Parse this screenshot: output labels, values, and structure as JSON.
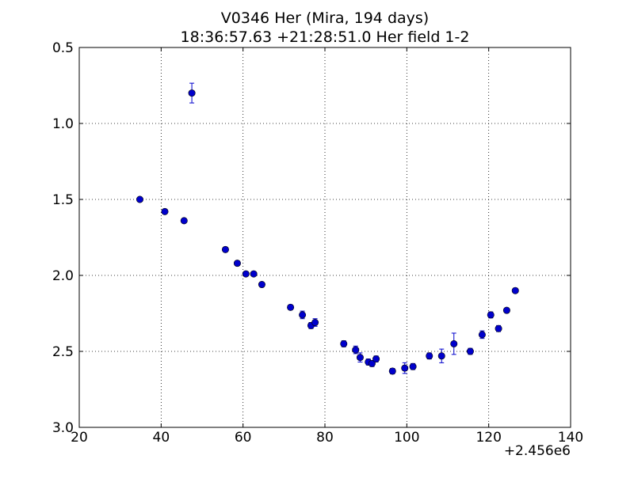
{
  "chart_data": {
    "type": "scatter",
    "title": "V0346 Her (Mira, 194 days)",
    "subtitle": "18:36:57.63 +21:28:51.0 Her field 1-2",
    "xlabel": "",
    "ylabel": "",
    "x_offset_label": "+2.456e6",
    "xlim": [
      20,
      140
    ],
    "ylim": [
      0.5,
      3.0
    ],
    "y_inverted": true,
    "grid": true,
    "grid_style": "dotted",
    "marker_color": "#0000cc",
    "x_ticks": [
      {
        "value": 20,
        "label": "20"
      },
      {
        "value": 40,
        "label": "40"
      },
      {
        "value": 60,
        "label": "60"
      },
      {
        "value": 80,
        "label": "80"
      },
      {
        "value": 100,
        "label": "100"
      },
      {
        "value": 120,
        "label": "120"
      },
      {
        "value": 140,
        "label": "140"
      }
    ],
    "y_ticks": [
      {
        "value": 0.5,
        "label": "0.5"
      },
      {
        "value": 1.0,
        "label": "1.0"
      },
      {
        "value": 1.5,
        "label": "1.5"
      },
      {
        "value": 2.0,
        "label": "2.0"
      },
      {
        "value": 2.5,
        "label": "2.5"
      },
      {
        "value": 3.0,
        "label": "3.0"
      }
    ],
    "points": [
      {
        "x": 34.8,
        "y": 1.5,
        "err": 0.01
      },
      {
        "x": 40.9,
        "y": 1.58,
        "err": 0.012
      },
      {
        "x": 45.6,
        "y": 1.64,
        "err": 0.012
      },
      {
        "x": 47.5,
        "y": 0.8,
        "err": 0.065
      },
      {
        "x": 55.7,
        "y": 1.83,
        "err": 0.012
      },
      {
        "x": 58.6,
        "y": 1.92,
        "err": 0.015
      },
      {
        "x": 60.7,
        "y": 1.99,
        "err": 0.012
      },
      {
        "x": 62.6,
        "y": 1.99,
        "err": 0.012
      },
      {
        "x": 64.6,
        "y": 2.06,
        "err": 0.012
      },
      {
        "x": 71.6,
        "y": 2.21,
        "err": 0.015
      },
      {
        "x": 74.5,
        "y": 2.26,
        "err": 0.025
      },
      {
        "x": 76.6,
        "y": 2.33,
        "err": 0.02
      },
      {
        "x": 77.6,
        "y": 2.31,
        "err": 0.025
      },
      {
        "x": 84.6,
        "y": 2.45,
        "err": 0.02
      },
      {
        "x": 87.5,
        "y": 2.49,
        "err": 0.025
      },
      {
        "x": 88.6,
        "y": 2.54,
        "err": 0.03
      },
      {
        "x": 90.6,
        "y": 2.57,
        "err": 0.02
      },
      {
        "x": 91.5,
        "y": 2.58,
        "err": 0.02
      },
      {
        "x": 92.5,
        "y": 2.55,
        "err": 0.02
      },
      {
        "x": 96.5,
        "y": 2.63,
        "err": 0.018
      },
      {
        "x": 99.5,
        "y": 2.61,
        "err": 0.035
      },
      {
        "x": 101.5,
        "y": 2.6,
        "err": 0.02
      },
      {
        "x": 105.5,
        "y": 2.53,
        "err": 0.02
      },
      {
        "x": 108.5,
        "y": 2.53,
        "err": 0.045
      },
      {
        "x": 111.5,
        "y": 2.45,
        "err": 0.07
      },
      {
        "x": 115.5,
        "y": 2.5,
        "err": 0.02
      },
      {
        "x": 118.4,
        "y": 2.39,
        "err": 0.025
      },
      {
        "x": 120.5,
        "y": 2.26,
        "err": 0.02
      },
      {
        "x": 122.4,
        "y": 2.35,
        "err": 0.02
      },
      {
        "x": 124.4,
        "y": 2.23,
        "err": 0.015
      },
      {
        "x": 126.5,
        "y": 2.1,
        "err": 0.015
      }
    ]
  }
}
